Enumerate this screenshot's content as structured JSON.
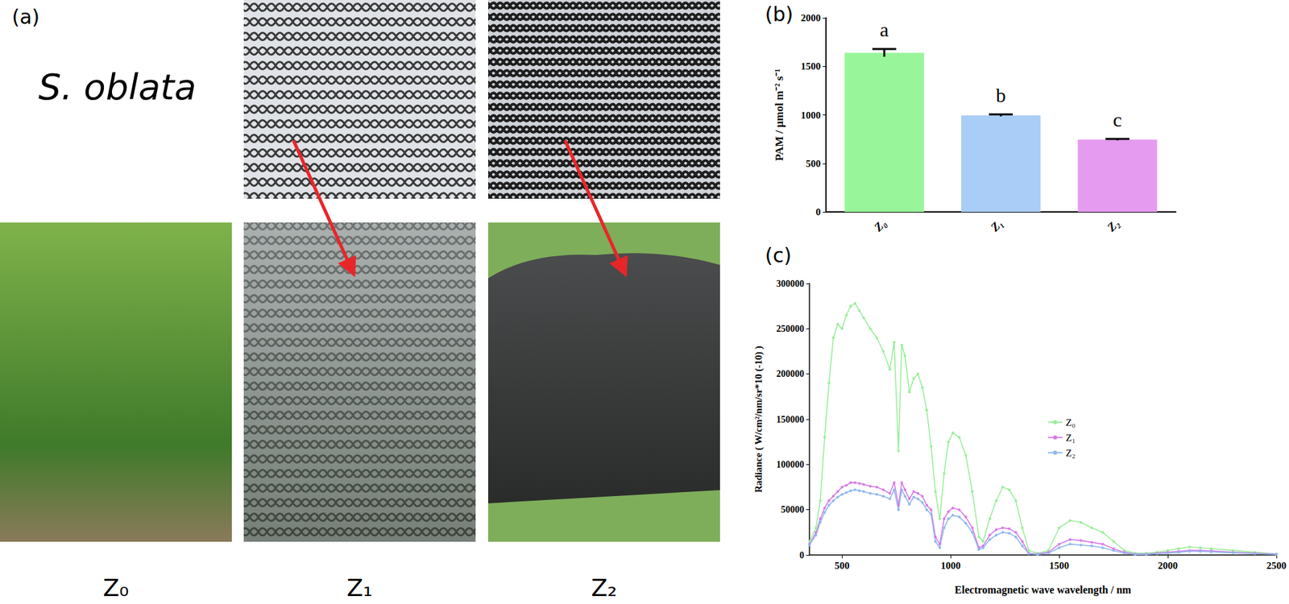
{
  "panel_a": {
    "label": "(a)",
    "species": "S. oblata",
    "treatments": [
      "Z₀",
      "Z₁",
      "Z₂"
    ]
  },
  "chart_data": [
    {
      "type": "bar",
      "panel_label": "(b)",
      "y_label": "PAM / μmol m⁻² s⁻¹",
      "categories": [
        "Z₀",
        "Z₁",
        "Z₂"
      ],
      "values": [
        1640,
        995,
        745
      ],
      "errors": [
        40,
        10,
        8
      ],
      "significance": [
        "a",
        "b",
        "c"
      ],
      "colors": [
        "#99f59a",
        "#a9cdf6",
        "#e59bf0"
      ],
      "ylim": [
        0,
        2000
      ],
      "yticks": [
        0,
        500,
        1000,
        1500,
        2000
      ],
      "grid": false
    },
    {
      "type": "line",
      "panel_label": "(c)",
      "x_label": "Electromagnetic wave wavelength / nm",
      "y_label": "Radiance ( W/cm²/nm/sr*10 (-10) )",
      "x": [
        350,
        380,
        400,
        420,
        440,
        460,
        480,
        500,
        520,
        540,
        560,
        580,
        600,
        630,
        660,
        690,
        720,
        740,
        760,
        775,
        790,
        810,
        830,
        850,
        870,
        890,
        910,
        930,
        950,
        970,
        990,
        1010,
        1040,
        1070,
        1100,
        1130,
        1150,
        1180,
        1210,
        1240,
        1270,
        1300,
        1330,
        1360,
        1400,
        1450,
        1500,
        1550,
        1600,
        1650,
        1700,
        1750,
        1800,
        1850,
        1900,
        1950,
        2000,
        2050,
        2100,
        2150,
        2200,
        2300,
        2400,
        2500
      ],
      "series": [
        {
          "name": "Z₀",
          "color": "#99ee99",
          "values": [
            15000,
            30000,
            60000,
            130000,
            190000,
            240000,
            255000,
            250000,
            265000,
            275000,
            278000,
            270000,
            262000,
            250000,
            240000,
            225000,
            205000,
            235000,
            115000,
            232000,
            220000,
            180000,
            195000,
            200000,
            185000,
            160000,
            120000,
            70000,
            40000,
            90000,
            125000,
            135000,
            130000,
            110000,
            70000,
            20000,
            15000,
            40000,
            60000,
            75000,
            72000,
            60000,
            30000,
            5000,
            2000,
            5000,
            30000,
            38000,
            36000,
            30000,
            25000,
            15000,
            5000,
            2000,
            2000,
            3000,
            5000,
            7000,
            9000,
            8000,
            7000,
            5000,
            3000,
            1000
          ]
        },
        {
          "name": "Z₁",
          "color": "#d87ae6",
          "values": [
            12000,
            25000,
            40000,
            52000,
            60000,
            65000,
            70000,
            75000,
            77000,
            80000,
            80000,
            79000,
            78000,
            76000,
            75000,
            72000,
            68000,
            80000,
            55000,
            80000,
            72000,
            62000,
            70000,
            68000,
            65000,
            55000,
            50000,
            20000,
            12000,
            40000,
            48000,
            52000,
            50000,
            42000,
            30000,
            8000,
            10000,
            22000,
            28000,
            30000,
            29000,
            25000,
            15000,
            2000,
            1000,
            3000,
            12000,
            17000,
            16000,
            14000,
            12000,
            7000,
            3000,
            1000,
            1000,
            2000,
            3000,
            4000,
            5000,
            5000,
            4500,
            3000,
            2000,
            1000
          ]
        },
        {
          "name": "Z₂",
          "color": "#8fb8ee",
          "values": [
            11000,
            22000,
            36000,
            47000,
            55000,
            60000,
            64000,
            67000,
            69000,
            71000,
            72000,
            71000,
            70000,
            68000,
            67000,
            65000,
            62000,
            72000,
            50000,
            72000,
            65000,
            56000,
            64000,
            62000,
            58000,
            50000,
            45000,
            15000,
            8000,
            30000,
            40000,
            44000,
            42000,
            35000,
            25000,
            6000,
            8000,
            17000,
            22000,
            25000,
            24000,
            20000,
            10000,
            1500,
            500,
            2000,
            8000,
            12000,
            11000,
            10000,
            8000,
            5000,
            2000,
            500,
            500,
            1500,
            2000,
            3000,
            4000,
            4000,
            3500,
            2500,
            1500,
            800
          ]
        }
      ],
      "xlim": [
        350,
        2500
      ],
      "xticks": [
        500,
        1000,
        1500,
        2000,
        2500
      ],
      "ylim": [
        0,
        300000
      ],
      "yticks": [
        0,
        50000,
        100000,
        150000,
        200000,
        250000,
        300000
      ],
      "legend": "right",
      "marker": "circle",
      "grid": false
    }
  ]
}
